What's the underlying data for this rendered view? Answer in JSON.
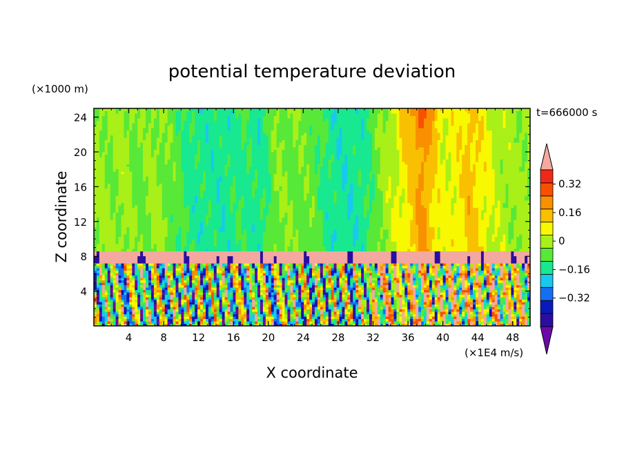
{
  "chart_data": {
    "type": "heatmap",
    "title": "potential temperature deviation",
    "xlabel": "X coordinate",
    "ylabel": "Z coordinate",
    "x_unit": "(×1E4 m/s)",
    "y_unit": "(×1000 m)",
    "time_label": "t=666000 s",
    "xlim": [
      0,
      50
    ],
    "ylim": [
      0,
      25
    ],
    "x_ticks": [
      4,
      8,
      12,
      16,
      20,
      24,
      28,
      32,
      36,
      40,
      44,
      48
    ],
    "y_ticks": [
      4,
      8,
      12,
      16,
      20,
      24
    ],
    "colorbar": {
      "levels": [
        -0.48,
        -0.4,
        -0.32,
        -0.24,
        -0.16,
        -0.08,
        0,
        0.08,
        0.16,
        0.24,
        0.32,
        0.4
      ],
      "colors": [
        "#6a0aa8",
        "#2a0ea0",
        "#0a1ab8",
        "#1470f0",
        "#18c8f0",
        "#18e890",
        "#58e838",
        "#a8f018",
        "#f8f800",
        "#f8c000",
        "#f89000",
        "#f85000",
        "#f02818",
        "#f4a8a0"
      ],
      "labels": [
        "0.32",
        "0.16",
        "0",
        "−0.16",
        "−0.32"
      ],
      "label_values": [
        0.32,
        0.16,
        0,
        -0.16,
        -0.32
      ]
    }
  }
}
